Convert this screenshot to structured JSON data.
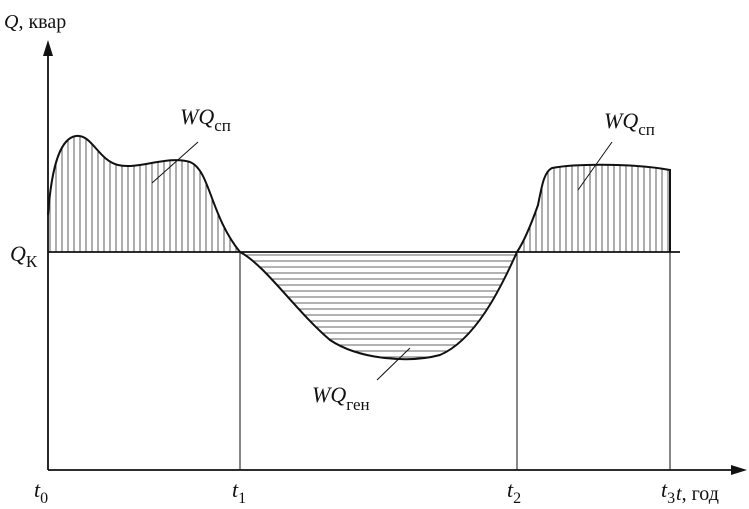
{
  "y_axis": {
    "symbol": "Q",
    "unit": ", квар"
  },
  "x_axis": {
    "symbol": "t",
    "unit": ", год"
  },
  "level_label": {
    "symbol": "Q",
    "subscript": "К"
  },
  "ticks": [
    {
      "symbol": "t",
      "subscript": "0"
    },
    {
      "symbol": "t",
      "subscript": "1"
    },
    {
      "symbol": "t",
      "subscript": "2"
    },
    {
      "symbol": "t",
      "subscript": "3"
    }
  ],
  "region_labels": {
    "left": {
      "symbol": "WQ",
      "subscript": "сп"
    },
    "right": {
      "symbol": "WQ",
      "subscript": "сп"
    },
    "bottom": {
      "symbol": "WQ",
      "subscript": "ген"
    }
  },
  "colors": {
    "stroke": "#111111",
    "hatch": "#333333"
  }
}
